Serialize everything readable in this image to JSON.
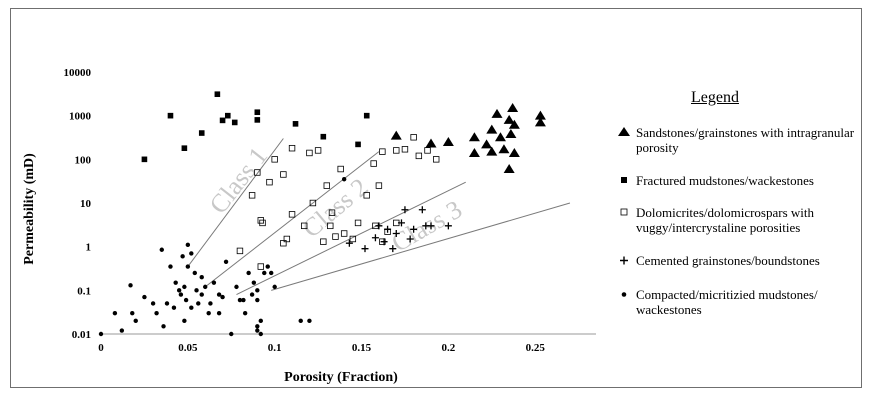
{
  "chart_data": {
    "type": "scatter",
    "title": "",
    "xlabel": "Porosity (Fraction)",
    "ylabel": "Permeability (mD)",
    "x_ticks": [
      "0",
      "0.05",
      "0.1",
      "0.15",
      "0.2",
      "0.25"
    ],
    "y_ticks": [
      "0.01",
      "0.1",
      "1",
      "10",
      "100",
      "1000",
      "10000"
    ],
    "xlim": [
      0,
      0.285
    ],
    "ylim": [
      0.01,
      10000
    ],
    "y_scale": "log",
    "grid": false,
    "legend_title": "Legend",
    "legend_position": "right",
    "series": [
      {
        "name": "Sandstones/grainstones with intragranular porosity",
        "marker": "triangle",
        "points": [
          [
            0.17,
            350
          ],
          [
            0.19,
            230
          ],
          [
            0.2,
            250
          ],
          [
            0.215,
            320
          ],
          [
            0.215,
            140
          ],
          [
            0.222,
            220
          ],
          [
            0.225,
            480
          ],
          [
            0.225,
            150
          ],
          [
            0.228,
            1100
          ],
          [
            0.23,
            320
          ],
          [
            0.232,
            170
          ],
          [
            0.235,
            800
          ],
          [
            0.235,
            60
          ],
          [
            0.236,
            380
          ],
          [
            0.237,
            1500
          ],
          [
            0.238,
            620
          ],
          [
            0.238,
            140
          ],
          [
            0.253,
            1000
          ],
          [
            0.253,
            700
          ]
        ]
      },
      {
        "name": "Fractured mudstones/wackestones",
        "marker": "square",
        "points": [
          [
            0.025,
            100
          ],
          [
            0.04,
            1000
          ],
          [
            0.048,
            180
          ],
          [
            0.058,
            400
          ],
          [
            0.067,
            3100
          ],
          [
            0.07,
            780
          ],
          [
            0.073,
            1000
          ],
          [
            0.077,
            700
          ],
          [
            0.09,
            1200
          ],
          [
            0.09,
            800
          ],
          [
            0.112,
            650
          ],
          [
            0.128,
            330
          ],
          [
            0.148,
            220
          ],
          [
            0.153,
            1000
          ]
        ]
      },
      {
        "name": "Dolomicrites/dolomicrospars with vuggy/intercrystaline porosities",
        "marker": "open-square",
        "points": [
          [
            0.08,
            0.8
          ],
          [
            0.092,
            0.35
          ],
          [
            0.087,
            15
          ],
          [
            0.09,
            50
          ],
          [
            0.092,
            4
          ],
          [
            0.093,
            3.5
          ],
          [
            0.097,
            30
          ],
          [
            0.1,
            100
          ],
          [
            0.105,
            45
          ],
          [
            0.105,
            1.2
          ],
          [
            0.107,
            1.5
          ],
          [
            0.11,
            180
          ],
          [
            0.11,
            5.5
          ],
          [
            0.117,
            3
          ],
          [
            0.12,
            140
          ],
          [
            0.122,
            10
          ],
          [
            0.125,
            160
          ],
          [
            0.128,
            1.3
          ],
          [
            0.13,
            25
          ],
          [
            0.132,
            3
          ],
          [
            0.133,
            6
          ],
          [
            0.135,
            1.7
          ],
          [
            0.138,
            60
          ],
          [
            0.14,
            2
          ],
          [
            0.145,
            1.5
          ],
          [
            0.148,
            3.5
          ],
          [
            0.153,
            15
          ],
          [
            0.157,
            80
          ],
          [
            0.158,
            3
          ],
          [
            0.16,
            25
          ],
          [
            0.162,
            150
          ],
          [
            0.162,
            1.3
          ],
          [
            0.165,
            2.2
          ],
          [
            0.17,
            160
          ],
          [
            0.17,
            3.5
          ],
          [
            0.175,
            170
          ],
          [
            0.18,
            320
          ],
          [
            0.183,
            120
          ],
          [
            0.188,
            160
          ],
          [
            0.193,
            100
          ]
        ]
      },
      {
        "name": "Cemented grainstones/boundstones",
        "marker": "plus",
        "points": [
          [
            0.143,
            1.2
          ],
          [
            0.152,
            0.9
          ],
          [
            0.158,
            1.6
          ],
          [
            0.16,
            3
          ],
          [
            0.163,
            1.3
          ],
          [
            0.165,
            2.5
          ],
          [
            0.168,
            0.9
          ],
          [
            0.17,
            2
          ],
          [
            0.173,
            3.5
          ],
          [
            0.175,
            7
          ],
          [
            0.178,
            1.5
          ],
          [
            0.18,
            2.5
          ],
          [
            0.185,
            7
          ],
          [
            0.187,
            3
          ],
          [
            0.19,
            3
          ],
          [
            0.2,
            3
          ]
        ]
      },
      {
        "name": "Compacted/micritizied mudstones/ wackestones",
        "marker": "dot",
        "points": [
          [
            0,
            0.01
          ],
          [
            0.008,
            0.03
          ],
          [
            0.012,
            0.012
          ],
          [
            0.017,
            0.13
          ],
          [
            0.018,
            0.03
          ],
          [
            0.02,
            0.02
          ],
          [
            0.025,
            0.07
          ],
          [
            0.03,
            0.05
          ],
          [
            0.032,
            0.03
          ],
          [
            0.035,
            0.85
          ],
          [
            0.036,
            0.015
          ],
          [
            0.038,
            0.05
          ],
          [
            0.04,
            0.35
          ],
          [
            0.042,
            0.04
          ],
          [
            0.043,
            0.15
          ],
          [
            0.045,
            0.1
          ],
          [
            0.046,
            0.08
          ],
          [
            0.047,
            0.6
          ],
          [
            0.048,
            0.12
          ],
          [
            0.048,
            0.02
          ],
          [
            0.049,
            0.06
          ],
          [
            0.05,
            1.1
          ],
          [
            0.05,
            0.35
          ],
          [
            0.052,
            0.7
          ],
          [
            0.052,
            0.04
          ],
          [
            0.054,
            0.25
          ],
          [
            0.055,
            0.1
          ],
          [
            0.056,
            0.05
          ],
          [
            0.058,
            0.08
          ],
          [
            0.058,
            0.2
          ],
          [
            0.06,
            0.12
          ],
          [
            0.062,
            0.03
          ],
          [
            0.063,
            0.05
          ],
          [
            0.065,
            0.15
          ],
          [
            0.068,
            0.08
          ],
          [
            0.068,
            0.03
          ],
          [
            0.07,
            0.07
          ],
          [
            0.072,
            0.45
          ],
          [
            0.075,
            0.01
          ],
          [
            0.078,
            0.12
          ],
          [
            0.08,
            0.06
          ],
          [
            0.082,
            0.06
          ],
          [
            0.083,
            0.03
          ],
          [
            0.085,
            0.25
          ],
          [
            0.087,
            0.08
          ],
          [
            0.088,
            0.15
          ],
          [
            0.09,
            0.06
          ],
          [
            0.09,
            0.1
          ],
          [
            0.09,
            0.015
          ],
          [
            0.09,
            0.012
          ],
          [
            0.092,
            0.01
          ],
          [
            0.092,
            0.02
          ],
          [
            0.094,
            0.25
          ],
          [
            0.096,
            0.35
          ],
          [
            0.098,
            0.25
          ],
          [
            0.1,
            0.12
          ],
          [
            0.115,
            0.02
          ],
          [
            0.12,
            0.02
          ],
          [
            0.14,
            35
          ]
        ]
      }
    ],
    "class_lines": [
      {
        "label": "Class 1",
        "from": [
          0.05,
          0.35
        ],
        "to": [
          0.105,
          300
        ],
        "label_at": [
          0.083,
          25
        ],
        "label_angle": -52
      },
      {
        "label": "Class 2",
        "from": [
          0.06,
          0.12
        ],
        "to": [
          0.16,
          150
        ],
        "label_at": [
          0.138,
          5.5
        ],
        "label_angle": -40
      },
      {
        "label": "Class 3",
        "from": [
          0.078,
          0.08
        ],
        "to": [
          0.21,
          30
        ],
        "label_at": [
          0.19,
          2
        ],
        "label_angle": -30
      },
      {
        "label": "",
        "from": [
          0.098,
          0.1
        ],
        "to": [
          0.27,
          10
        ],
        "label_at": null,
        "label_angle": 0
      }
    ],
    "colors": {
      "marker": "#000000",
      "class_line": "#7a7a7a",
      "class_label": "#c8c8c8",
      "axis": "#9a9a9a"
    }
  }
}
